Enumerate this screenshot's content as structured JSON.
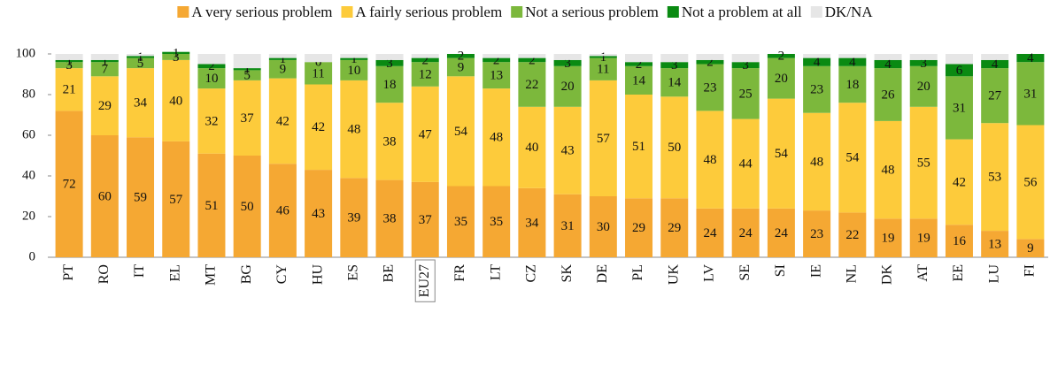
{
  "chart_data": {
    "type": "stacked_bar",
    "categories": [
      "PT",
      "RO",
      "IT",
      "EL",
      "MT",
      "BG",
      "CY",
      "HU",
      "ES",
      "BE",
      "EU27",
      "FR",
      "LT",
      "CZ",
      "SK",
      "DE",
      "PL",
      "UK",
      "LV",
      "SE",
      "SI",
      "IE",
      "NL",
      "DK",
      "AT",
      "EE",
      "LU",
      "FI"
    ],
    "series": [
      {
        "name": "A very serious problem",
        "color": "#f5a833",
        "labels": true,
        "values": [
          72,
          60,
          59,
          57,
          51,
          50,
          46,
          43,
          39,
          38,
          37,
          35,
          35,
          34,
          31,
          30,
          29,
          29,
          24,
          24,
          24,
          23,
          22,
          19,
          19,
          16,
          13,
          9
        ]
      },
      {
        "name": "A fairly serious problem",
        "color": "#fdcb3b",
        "labels": true,
        "values": [
          21,
          29,
          34,
          40,
          32,
          37,
          42,
          42,
          48,
          38,
          47,
          54,
          48,
          40,
          43,
          57,
          51,
          50,
          48,
          44,
          54,
          48,
          54,
          48,
          55,
          42,
          53,
          56
        ]
      },
      {
        "name": "Not a serious problem",
        "color": "#7cb83c",
        "labels": true,
        "values": [
          3,
          7,
          5,
          3,
          10,
          5,
          9,
          11,
          10,
          18,
          12,
          9,
          13,
          22,
          20,
          11,
          14,
          14,
          23,
          25,
          20,
          23,
          18,
          26,
          20,
          31,
          27,
          31
        ]
      },
      {
        "name": "Not a problem at all",
        "color": "#0a8a12",
        "labels": true,
        "values": [
          1,
          1,
          1,
          1,
          2,
          1,
          1,
          0,
          1,
          3,
          2,
          2,
          2,
          2,
          3,
          1,
          2,
          3,
          2,
          3,
          2,
          4,
          4,
          4,
          3,
          6,
          4,
          4
        ]
      },
      {
        "name": "DK/NA",
        "color": "#e6e6e6",
        "labels": false,
        "values": [
          3,
          3,
          1,
          0,
          5,
          7,
          2,
          4,
          2,
          3,
          2,
          0,
          2,
          2,
          3,
          1,
          4,
          4,
          3,
          4,
          0,
          2,
          2,
          3,
          3,
          5,
          3,
          0
        ]
      }
    ],
    "highlight": "EU27",
    "ylim": [
      0,
      100
    ],
    "yticks": [
      0,
      20,
      40,
      60,
      80,
      100
    ],
    "grid": false,
    "legend": "top"
  }
}
